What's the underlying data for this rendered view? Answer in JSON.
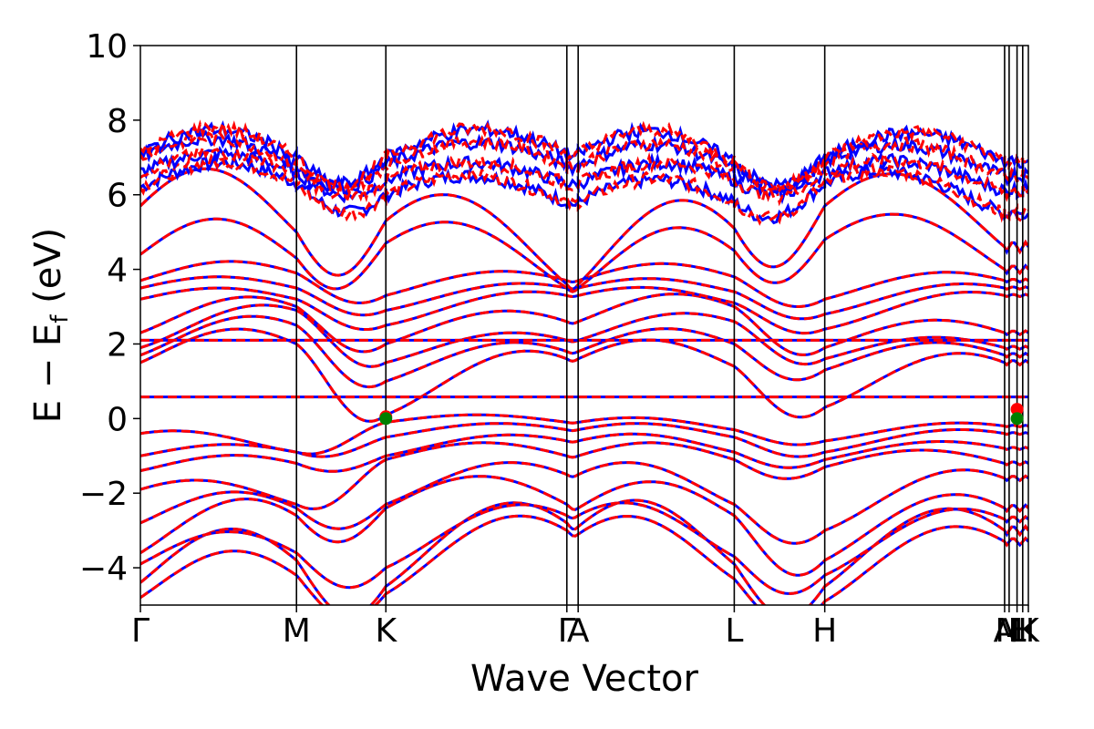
{
  "chart_data": {
    "type": "line",
    "subtype": "band-structure",
    "xlabel": "Wave Vector",
    "ylabel_main": "E − E",
    "ylabel_sub": "f",
    "ylabel_unit": " (eV)",
    "ylim": [
      -5,
      10
    ],
    "yticks": [
      {
        "value": -4,
        "label": "−4"
      },
      {
        "value": -2,
        "label": "−2"
      },
      {
        "value": 0,
        "label": "0"
      },
      {
        "value": 2,
        "label": "2"
      },
      {
        "value": 4,
        "label": "4"
      },
      {
        "value": 6,
        "label": "6"
      },
      {
        "value": 8,
        "label": "8"
      },
      {
        "value": 10,
        "label": "10"
      }
    ],
    "kpath_range": [
      0,
      7.85
    ],
    "kpoints": [
      {
        "label": "Γ",
        "x": 0.0
      },
      {
        "label": "M",
        "x": 1.38
      },
      {
        "label": "K",
        "x": 2.17
      },
      {
        "label": "Γ",
        "x": 3.77
      },
      {
        "label": "A",
        "x": 3.87
      },
      {
        "label": "L",
        "x": 5.25
      },
      {
        "label": "H",
        "x": 6.05
      },
      {
        "label": "A",
        "x": 7.64
      },
      {
        "label": "M",
        "x": 7.68
      },
      {
        "label": "L",
        "x": 7.75
      },
      {
        "label": "H",
        "x": 7.8
      },
      {
        "label": "K",
        "x": 7.85
      }
    ],
    "grid": false,
    "legend": "none",
    "series": [
      {
        "color": "#0000ff",
        "style": "solid"
      },
      {
        "color": "#ff0000",
        "style": "dashed"
      }
    ],
    "markers": [
      {
        "x": 2.17,
        "y": 0.05,
        "color": "#ff0000"
      },
      {
        "x": 2.17,
        "y": 0.0,
        "color": "#008000"
      },
      {
        "x": 7.75,
        "y": 0.25,
        "color": "#ff0000"
      },
      {
        "x": 7.75,
        "y": 0.0,
        "color": "#008000"
      }
    ],
    "flat_bands": [
      0.58,
      2.1
    ]
  }
}
